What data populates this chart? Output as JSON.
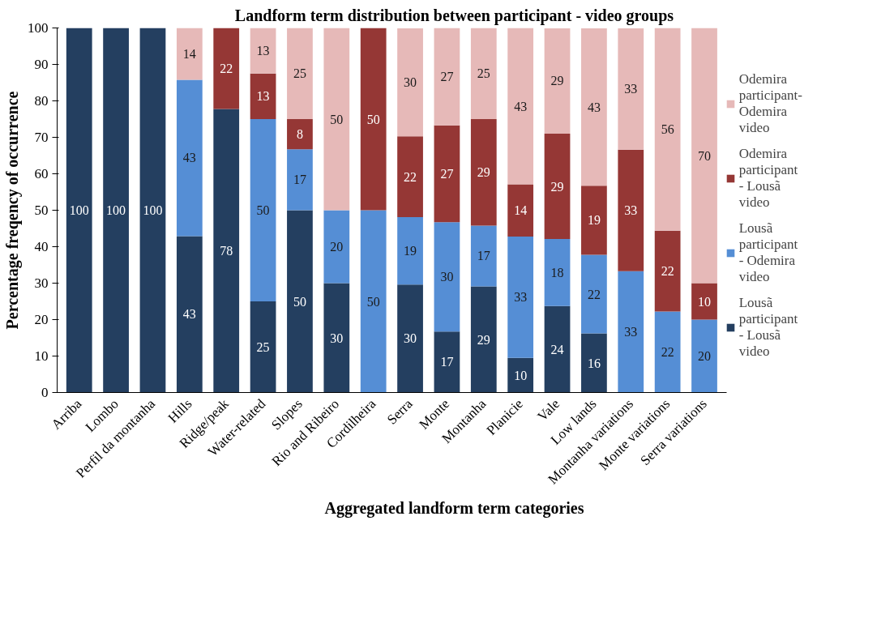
{
  "chart_data": {
    "type": "bar",
    "stacked": true,
    "title": "Landform term distribution between participant - video groups",
    "xlabel": "Aggregated landform term categories",
    "ylabel": "Percentage freqency of occurrence",
    "categories": [
      "Arriba",
      "Lombo",
      "Perfil da montanha",
      "Hills",
      "Ridge/peak",
      "Water-related",
      "Slopes",
      "Rio and Ribeiro",
      "Cordilheira",
      "Serra",
      "Monte",
      "Montanha",
      "Planicie",
      "Vale",
      "Low lands",
      "Montanha variations",
      "Monte variations",
      "Serra variations"
    ],
    "series": [
      {
        "name": "Lousã participant - Lousã video",
        "color": "#243f60",
        "values": [
          100,
          100,
          100,
          42.9,
          77.8,
          25,
          50,
          30,
          0,
          29.6,
          16.7,
          29.1,
          9.5,
          23.7,
          16.2,
          0,
          0,
          0
        ],
        "value_labels": [
          "100",
          "100",
          "100",
          "43",
          "78",
          "25",
          "50",
          "30",
          null,
          "30",
          "17",
          "29",
          "10",
          "24",
          "16",
          null,
          null,
          null
        ]
      },
      {
        "name": "Lousã participant - Odemira video",
        "color": "#558ed5",
        "values": [
          0,
          0,
          0,
          42.9,
          0,
          50,
          16.7,
          20,
          50,
          18.5,
          30,
          16.7,
          33.3,
          18.4,
          21.6,
          33.3,
          22.2,
          20
        ],
        "value_labels": [
          null,
          null,
          null,
          "43",
          null,
          "50",
          "17",
          "20",
          "50",
          "19",
          "30",
          "17",
          "33",
          "18",
          "22",
          "33",
          "22",
          "20"
        ]
      },
      {
        "name": "Odemira participant - Lousã video",
        "color": "#953735",
        "values": [
          0,
          0,
          0,
          0,
          22.2,
          12.5,
          8.3,
          0,
          50,
          22.2,
          26.6,
          29.2,
          14.3,
          28.9,
          18.9,
          33.3,
          22.2,
          10
        ],
        "value_labels": [
          null,
          null,
          null,
          null,
          "22",
          "13",
          "8",
          null,
          "50",
          "22",
          "27",
          "29",
          "14",
          "29",
          "19",
          "33",
          "22",
          "10"
        ]
      },
      {
        "name": "Odemira participant-Odemira video",
        "color": "#e6b9b8",
        "values": [
          0,
          0,
          0,
          14.2,
          0,
          12.5,
          25,
          50,
          0,
          29.6,
          26.7,
          25,
          42.9,
          28.9,
          43.2,
          33.3,
          55.6,
          70
        ],
        "value_labels": [
          null,
          null,
          null,
          "14",
          null,
          "13",
          "25",
          "50",
          null,
          "30",
          "27",
          "25",
          "43",
          "29",
          "43",
          "33",
          "56",
          "70"
        ]
      }
    ],
    "ylim": [
      0,
      100
    ],
    "yticks": [
      0,
      10,
      20,
      30,
      40,
      50,
      60,
      70,
      80,
      90,
      100
    ],
    "grid": false,
    "legend": "right"
  }
}
